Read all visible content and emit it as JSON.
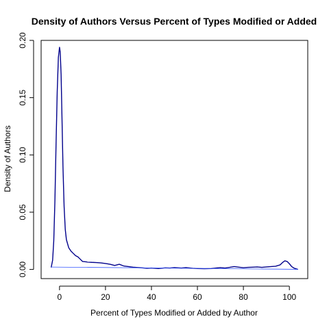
{
  "chart_data": {
    "type": "line",
    "title": "Density of Authors Versus Percent of Types Modified or Added",
    "xlabel": "Percent of Types Modified or Added by Author",
    "ylabel": "Density of Authors",
    "xlim": [
      -8,
      108
    ],
    "ylim": [
      -0.008,
      0.2
    ],
    "x_ticks": [
      0,
      20,
      40,
      60,
      80,
      100
    ],
    "x_tick_labels": [
      "0",
      "20",
      "40",
      "60",
      "80",
      "100"
    ],
    "y_ticks": [
      0.0,
      0.05,
      0.1,
      0.15,
      0.2
    ],
    "y_tick_labels": [
      "0.00",
      "0.05",
      "0.10",
      "0.15",
      "0.20"
    ],
    "grid": false,
    "legend": "none",
    "colors": {
      "density_line": "#00008B",
      "baseline_line": "#3355ff",
      "axis": "#000000"
    },
    "series": [
      {
        "x": [
          -3.6,
          -3.0,
          -2.5,
          -2.0,
          -1.5,
          -1.0,
          -0.5,
          0.0,
          0.3,
          0.7,
          1.0,
          1.5,
          2.0,
          2.5,
          3.0,
          4.0,
          5.0,
          6.0,
          7.0,
          8.0,
          9.0,
          10.0,
          12.0,
          14.0,
          16.0,
          18.0,
          20.0,
          22.0,
          24.0,
          26.0,
          28.0,
          30.0,
          32.0,
          35.0,
          38.0,
          40.0,
          43.0,
          46.0,
          48.0,
          50.0,
          53.0,
          55.0,
          58.0,
          60.0,
          63.0,
          66.0,
          68.0,
          70.0,
          72.0,
          74.0,
          76.0,
          78.0,
          80.0,
          82.0,
          84.0,
          86.0,
          88.0,
          90.0,
          92.0,
          94.0,
          96.0,
          97.0,
          98.0,
          99.0,
          100.0,
          101.0,
          102.0,
          103.0,
          103.6
        ],
        "values": [
          0.002,
          0.008,
          0.025,
          0.06,
          0.11,
          0.155,
          0.185,
          0.194,
          0.19,
          0.17,
          0.14,
          0.09,
          0.055,
          0.035,
          0.026,
          0.019,
          0.016,
          0.014,
          0.012,
          0.011,
          0.009,
          0.007,
          0.0065,
          0.0062,
          0.006,
          0.0057,
          0.0052,
          0.0045,
          0.0035,
          0.0045,
          0.003,
          0.0025,
          0.002,
          0.0015,
          0.001,
          0.0012,
          0.0008,
          0.0014,
          0.0012,
          0.0016,
          0.0012,
          0.0016,
          0.001,
          0.0008,
          0.0006,
          0.0008,
          0.0012,
          0.0016,
          0.0012,
          0.0018,
          0.0025,
          0.002,
          0.0015,
          0.0018,
          0.002,
          0.0022,
          0.0018,
          0.0022,
          0.0025,
          0.0028,
          0.004,
          0.006,
          0.0075,
          0.007,
          0.005,
          0.0025,
          0.0012,
          0.0005,
          0.0001
        ]
      },
      {
        "x": [
          -3.6,
          103.6
        ],
        "values": [
          0.0021,
          0.0001
        ]
      }
    ]
  }
}
